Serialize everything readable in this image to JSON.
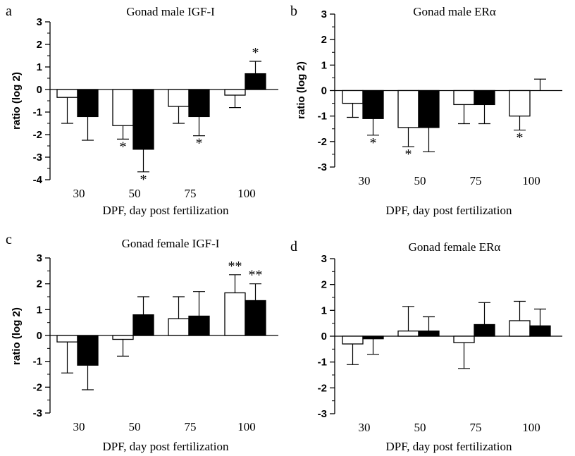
{
  "chart_data": [
    {
      "panel_letter": "a",
      "type": "bar",
      "title": "Gonad male IGF-I",
      "xlabel": "DPF, day post fertilization",
      "ylabel": "ratio (log 2)",
      "ylim": [
        -4,
        3
      ],
      "yticks": [
        "-4",
        "-3",
        "-2",
        "-1",
        "0",
        "1",
        "2",
        "3"
      ],
      "categories": [
        "30",
        "50",
        "75",
        "100"
      ],
      "series": [
        {
          "fill": "#ffffff",
          "values": [
            -0.35,
            -1.6,
            -0.75,
            -0.25
          ],
          "error": [
            1.15,
            0.6,
            0.75,
            0.55
          ],
          "annotations": [
            "",
            "*",
            "",
            ""
          ]
        },
        {
          "fill": "#000000",
          "values": [
            -1.2,
            -2.65,
            -1.2,
            0.7
          ],
          "error": [
            1.05,
            1.0,
            0.85,
            0.55
          ],
          "annotations": [
            "",
            "*",
            "*",
            "*"
          ]
        }
      ]
    },
    {
      "panel_letter": "b",
      "type": "bar",
      "title": "Gonad male ERα",
      "xlabel": "DPF, day post fertilization",
      "ylabel": "ratio (log 2)",
      "ylim": [
        -3,
        3
      ],
      "yticks": [
        "-3",
        "-2",
        "-1",
        "0",
        "1",
        "2",
        "3"
      ],
      "categories": [
        "30",
        "50",
        "75",
        "100"
      ],
      "series": [
        {
          "fill": "#ffffff",
          "values": [
            -0.5,
            -1.45,
            -0.55,
            -1.0
          ],
          "error": [
            0.55,
            0.75,
            0.75,
            0.55
          ],
          "annotations": [
            "",
            "*",
            "",
            "*"
          ]
        },
        {
          "fill": "#000000",
          "values": [
            -1.1,
            -1.45,
            -0.55,
            0.0
          ],
          "error": [
            0.65,
            0.95,
            0.75,
            0.45
          ],
          "annotations": [
            "*",
            "",
            "",
            ""
          ]
        }
      ]
    },
    {
      "panel_letter": "c",
      "type": "bar",
      "title": "Gonad female IGF-I",
      "xlabel": "DPF, day post fertilization",
      "ylabel": "ratio (log 2)",
      "ylim": [
        -3,
        3
      ],
      "yticks": [
        "-3",
        "-2",
        "-1",
        "0",
        "1",
        "2",
        "3"
      ],
      "categories": [
        "30",
        "50",
        "75",
        "100"
      ],
      "series": [
        {
          "fill": "#ffffff",
          "values": [
            -0.25,
            -0.15,
            0.65,
            1.65
          ],
          "error": [
            1.2,
            0.65,
            0.85,
            0.7
          ],
          "annotations": [
            "",
            "",
            "",
            "**"
          ]
        },
        {
          "fill": "#000000",
          "values": [
            -1.15,
            0.8,
            0.75,
            1.35
          ],
          "error": [
            0.95,
            0.7,
            0.95,
            0.65
          ],
          "annotations": [
            "",
            "",
            "",
            "**"
          ]
        }
      ]
    },
    {
      "panel_letter": "d",
      "type": "bar",
      "title": "Gonad female ERα",
      "xlabel": "DPF, day post fertilization",
      "ylabel": "",
      "ylim": [
        -3,
        3
      ],
      "yticks": [
        "-3",
        "-2",
        "-1",
        "0",
        "1",
        "2",
        "3"
      ],
      "categories": [
        "30",
        "50",
        "75",
        "100"
      ],
      "series": [
        {
          "fill": "#ffffff",
          "values": [
            -0.3,
            0.2,
            -0.25,
            0.6
          ],
          "error": [
            0.8,
            0.95,
            1.0,
            0.75
          ],
          "annotations": [
            "",
            "",
            "",
            ""
          ]
        },
        {
          "fill": "#000000",
          "values": [
            -0.1,
            0.2,
            0.45,
            0.4
          ],
          "error": [
            0.6,
            0.55,
            0.85,
            0.65
          ],
          "annotations": [
            "",
            "",
            "",
            ""
          ]
        }
      ]
    }
  ]
}
